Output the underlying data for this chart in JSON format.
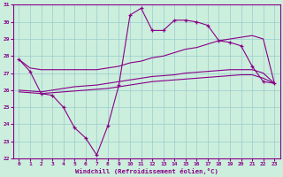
{
  "hours": [
    0,
    1,
    2,
    3,
    4,
    5,
    6,
    7,
    8,
    9,
    10,
    11,
    12,
    13,
    14,
    15,
    16,
    17,
    18,
    19,
    20,
    21,
    22,
    23
  ],
  "temp_line": [
    27.8,
    27.1,
    25.8,
    25.7,
    25.0,
    23.8,
    23.2,
    22.2,
    23.9,
    26.3,
    30.4,
    30.8,
    29.5,
    29.5,
    30.1,
    30.1,
    30.0,
    29.8,
    28.9,
    28.8,
    28.6,
    27.4,
    26.5,
    26.4
  ],
  "smooth1": [
    27.8,
    27.3,
    27.2,
    27.2,
    27.2,
    27.2,
    27.2,
    27.2,
    27.3,
    27.4,
    27.6,
    27.7,
    27.9,
    28.0,
    28.2,
    28.4,
    28.5,
    28.7,
    28.9,
    29.0,
    29.1,
    29.2,
    29.0,
    26.4
  ],
  "smooth2": [
    26.0,
    25.95,
    25.9,
    26.0,
    26.1,
    26.2,
    26.25,
    26.3,
    26.4,
    26.5,
    26.6,
    26.7,
    26.8,
    26.85,
    26.9,
    27.0,
    27.05,
    27.1,
    27.15,
    27.2,
    27.2,
    27.2,
    27.0,
    26.4
  ],
  "smooth3": [
    25.9,
    25.85,
    25.8,
    25.85,
    25.9,
    25.95,
    26.0,
    26.05,
    26.1,
    26.2,
    26.3,
    26.4,
    26.5,
    26.55,
    26.6,
    26.65,
    26.7,
    26.75,
    26.8,
    26.85,
    26.9,
    26.9,
    26.7,
    26.4
  ],
  "line_color": "#880088",
  "bg_color": "#cceedd",
  "grid_color": "#99cccc",
  "xlabel": "Windchill (Refroidissement éolien,°C)",
  "ylim": [
    22,
    31
  ],
  "xlim": [
    0,
    23
  ],
  "yticks": [
    22,
    23,
    24,
    25,
    26,
    27,
    28,
    29,
    30,
    31
  ],
  "xticks": [
    0,
    1,
    2,
    3,
    4,
    5,
    6,
    7,
    8,
    9,
    10,
    11,
    12,
    13,
    14,
    15,
    16,
    17,
    18,
    19,
    20,
    21,
    22,
    23
  ]
}
